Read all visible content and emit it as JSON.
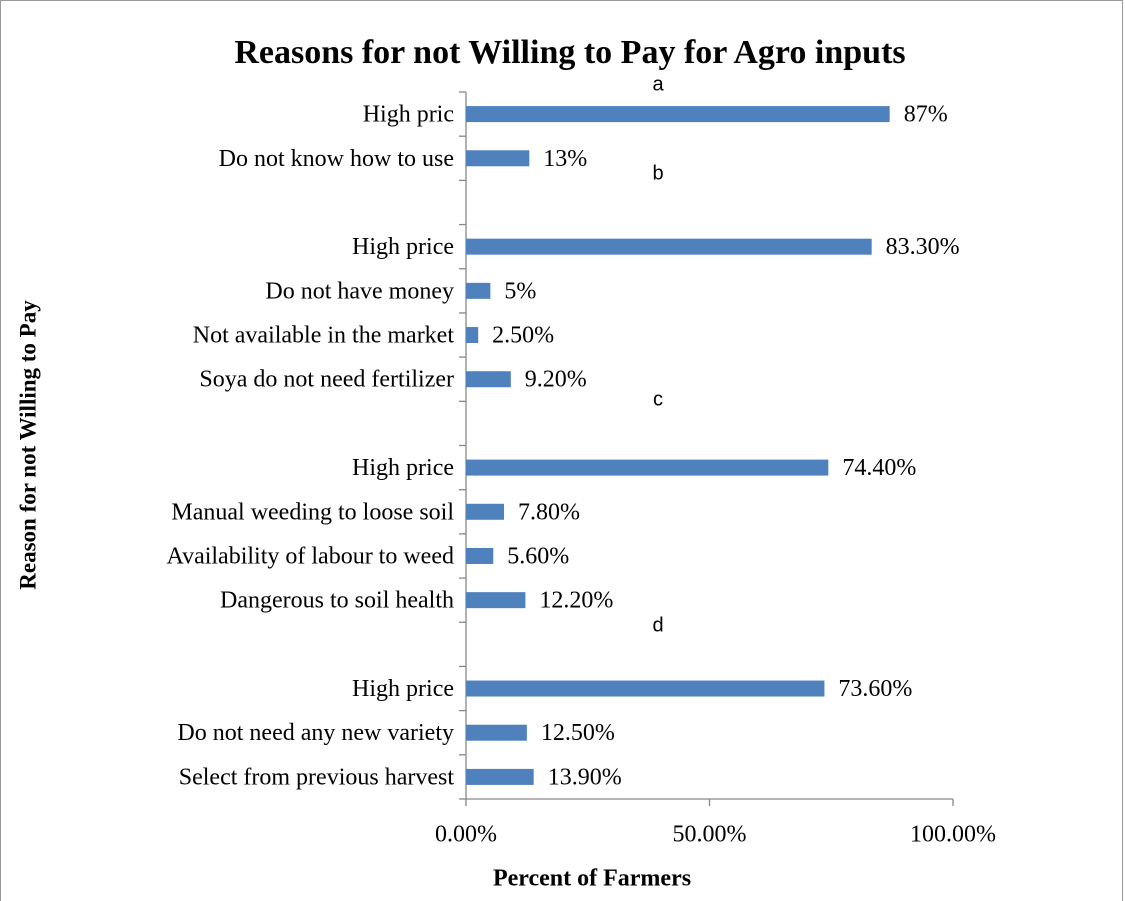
{
  "chart_data": {
    "type": "hbar",
    "title": "Reasons for not Willing to Pay for Agro inputs",
    "x_label": "Percent of Farmers",
    "y_label": "Reason for not Willing to Pay",
    "categories": [
      "High pric",
      "Do not know how to use",
      null,
      "High price",
      "Do not have money",
      "Not available in the market",
      "Soya do not need fertilizer",
      null,
      "High price",
      "Manual weeding to loose soil",
      "Availability of labour to weed",
      "Dangerous to soil health",
      null,
      "High price",
      "Do not need any new variety",
      "Select from previous harvest"
    ],
    "values": [
      87,
      13,
      null,
      83.3,
      5,
      2.5,
      9.2,
      null,
      74.4,
      7.8,
      5.6,
      12.2,
      null,
      73.6,
      12.5,
      13.9
    ],
    "value_labels": [
      "87%",
      "13%",
      null,
      "83.30%",
      "5%",
      "2.50%",
      "9.20%",
      null,
      "74.40%",
      "7.80%",
      "5.60%",
      "12.20%",
      null,
      "73.60%",
      "12.50%",
      "13.90%"
    ],
    "annotations": [
      "a",
      "b",
      "c",
      "d"
    ],
    "color": "#4f81bd",
    "xlim": [
      0,
      100
    ],
    "xticks": [
      {
        "value": 0,
        "label": "0.00%"
      },
      {
        "value": 50,
        "label": "50.00%"
      },
      {
        "value": 100,
        "label": "100.00%"
      }
    ],
    "grid": false
  }
}
